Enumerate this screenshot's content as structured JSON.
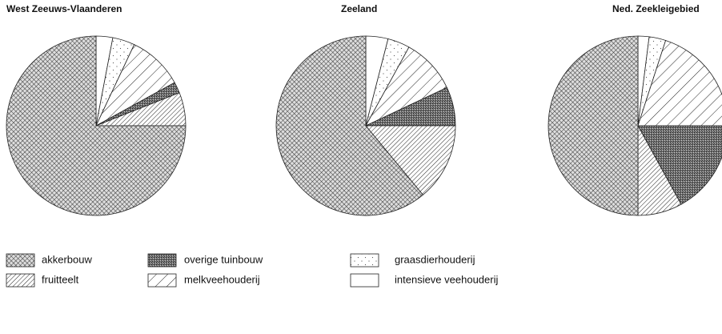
{
  "chart_data": [
    {
      "type": "pie",
      "title": "West Zeeuws-Vlaanderen",
      "categories": [
        "intensieve veehouderij",
        "graasdierhouderij",
        "melkveehouderij",
        "overige tuinbouw",
        "fruitteelt",
        "akkerbouw"
      ],
      "values": [
        3,
        4,
        10,
        2,
        6,
        75
      ]
    },
    {
      "type": "pie",
      "title": "Zeeland",
      "categories": [
        "intensieve veehouderij",
        "graasdierhouderij",
        "melkveehouderij",
        "overige tuinbouw",
        "fruitteelt",
        "akkerbouw"
      ],
      "values": [
        4,
        4,
        10,
        7,
        14,
        61
      ]
    },
    {
      "type": "pie",
      "title": "Ned. Zeekleigebied",
      "categories": [
        "intensieve veehouderij",
        "graasdierhouderij",
        "melkveehouderij",
        "overige tuinbouw",
        "fruitteelt",
        "akkerbouw"
      ],
      "values": [
        2,
        3,
        20,
        17,
        8,
        50
      ]
    }
  ]
}
